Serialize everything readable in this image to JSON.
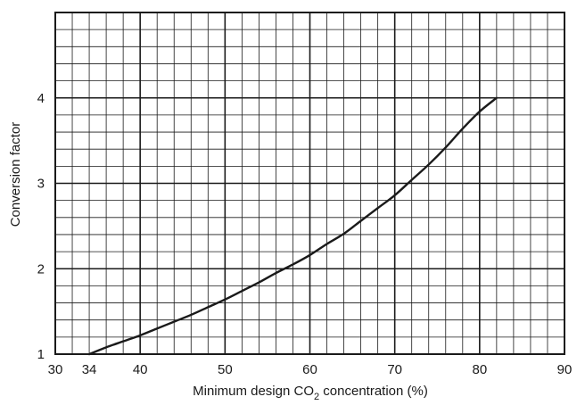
{
  "chart_data": {
    "type": "line",
    "title": "",
    "xlabel": {
      "prefix": "Minimum design CO",
      "subscript": "2",
      "suffix": " concentration (%)"
    },
    "ylabel": "Conversion factor",
    "xlim": [
      30,
      90
    ],
    "ylim": [
      1,
      5
    ],
    "x_ticks": [
      30,
      34,
      40,
      50,
      60,
      70,
      80,
      90
    ],
    "x_tick_labels": [
      "30",
      "34",
      "40",
      "50",
      "60",
      "70",
      "80",
      "90"
    ],
    "y_ticks": [
      1,
      2,
      3,
      4
    ],
    "y_tick_labels": [
      "1",
      "2",
      "3",
      "4"
    ],
    "minor_grid_x": 2,
    "minor_grid_y": 0.2,
    "major_grid_x": 10,
    "major_grid_y": 1,
    "grid": true,
    "series": [
      {
        "x": [
          34,
          36,
          38,
          40,
          42,
          44,
          46,
          48,
          50,
          52,
          54,
          56,
          58,
          60,
          62,
          64,
          66,
          68,
          70,
          72,
          74,
          76,
          78,
          80,
          82
        ],
        "y": [
          1.0,
          1.08,
          1.15,
          1.22,
          1.3,
          1.38,
          1.46,
          1.55,
          1.64,
          1.74,
          1.84,
          1.95,
          2.05,
          2.16,
          2.29,
          2.41,
          2.56,
          2.71,
          2.86,
          3.04,
          3.22,
          3.42,
          3.64,
          3.84,
          4.0
        ]
      }
    ]
  }
}
